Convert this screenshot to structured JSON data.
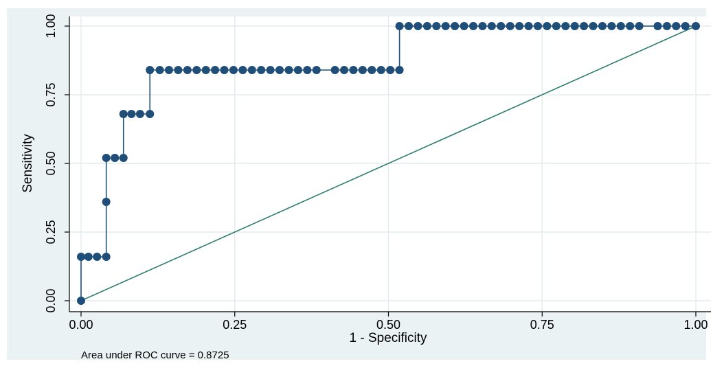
{
  "chart_data": {
    "type": "line",
    "xlabel": "1 - Specificity",
    "ylabel": "Sensitivity",
    "xlim": [
      0,
      1
    ],
    "ylim": [
      0,
      1
    ],
    "grid": true,
    "x_ticks": [
      "0.00",
      "0.25",
      "0.50",
      "0.75",
      "1.00"
    ],
    "y_ticks": [
      "0.00",
      "0.25",
      "0.50",
      "0.75",
      "1.00"
    ],
    "note": "Area under ROC curve = 0.8725",
    "series": [
      {
        "kind": "roc-curve",
        "color": "#1f4e79",
        "points": [
          [
            0.0,
            0.0
          ],
          [
            0.0,
            0.16
          ],
          [
            0.012,
            0.16
          ],
          [
            0.026,
            0.16
          ],
          [
            0.041,
            0.16
          ],
          [
            0.041,
            0.36
          ],
          [
            0.041,
            0.52
          ],
          [
            0.055,
            0.52
          ],
          [
            0.069,
            0.52
          ],
          [
            0.069,
            0.68
          ],
          [
            0.082,
            0.68
          ],
          [
            0.096,
            0.68
          ],
          [
            0.112,
            0.68
          ],
          [
            0.112,
            0.84
          ],
          [
            0.128,
            0.84
          ],
          [
            0.143,
            0.84
          ],
          [
            0.158,
            0.84
          ],
          [
            0.173,
            0.84
          ],
          [
            0.188,
            0.84
          ],
          [
            0.203,
            0.84
          ],
          [
            0.218,
            0.84
          ],
          [
            0.233,
            0.84
          ],
          [
            0.248,
            0.84
          ],
          [
            0.263,
            0.84
          ],
          [
            0.278,
            0.84
          ],
          [
            0.293,
            0.84
          ],
          [
            0.308,
            0.84
          ],
          [
            0.323,
            0.84
          ],
          [
            0.338,
            0.84
          ],
          [
            0.353,
            0.84
          ],
          [
            0.368,
            0.84
          ],
          [
            0.383,
            0.84
          ],
          [
            0.413,
            0.84
          ],
          [
            0.428,
            0.84
          ],
          [
            0.443,
            0.84
          ],
          [
            0.458,
            0.84
          ],
          [
            0.473,
            0.84
          ],
          [
            0.488,
            0.84
          ],
          [
            0.503,
            0.84
          ],
          [
            0.518,
            0.84
          ],
          [
            0.518,
            1.0
          ],
          [
            0.533,
            1.0
          ],
          [
            0.548,
            1.0
          ],
          [
            0.563,
            1.0
          ],
          [
            0.578,
            1.0
          ],
          [
            0.593,
            1.0
          ],
          [
            0.608,
            1.0
          ],
          [
            0.623,
            1.0
          ],
          [
            0.638,
            1.0
          ],
          [
            0.653,
            1.0
          ],
          [
            0.668,
            1.0
          ],
          [
            0.683,
            1.0
          ],
          [
            0.698,
            1.0
          ],
          [
            0.713,
            1.0
          ],
          [
            0.728,
            1.0
          ],
          [
            0.743,
            1.0
          ],
          [
            0.758,
            1.0
          ],
          [
            0.773,
            1.0
          ],
          [
            0.788,
            1.0
          ],
          [
            0.803,
            1.0
          ],
          [
            0.818,
            1.0
          ],
          [
            0.833,
            1.0
          ],
          [
            0.848,
            1.0
          ],
          [
            0.863,
            1.0
          ],
          [
            0.878,
            1.0
          ],
          [
            0.893,
            1.0
          ],
          [
            0.908,
            1.0
          ],
          [
            0.938,
            1.0
          ],
          [
            0.953,
            1.0
          ],
          [
            0.968,
            1.0
          ],
          [
            0.983,
            1.0
          ],
          [
            1.0,
            1.0
          ]
        ]
      },
      {
        "kind": "reference-line",
        "color": "#2e7d6e",
        "points": [
          [
            0,
            0
          ],
          [
            1,
            1
          ]
        ]
      }
    ]
  },
  "colors": {
    "outer_background": "#eaf2f3",
    "plot_background": "#ffffff",
    "grid": "#e4ebee",
    "roc": "#1f4e79",
    "reference": "#2e7d6e"
  }
}
